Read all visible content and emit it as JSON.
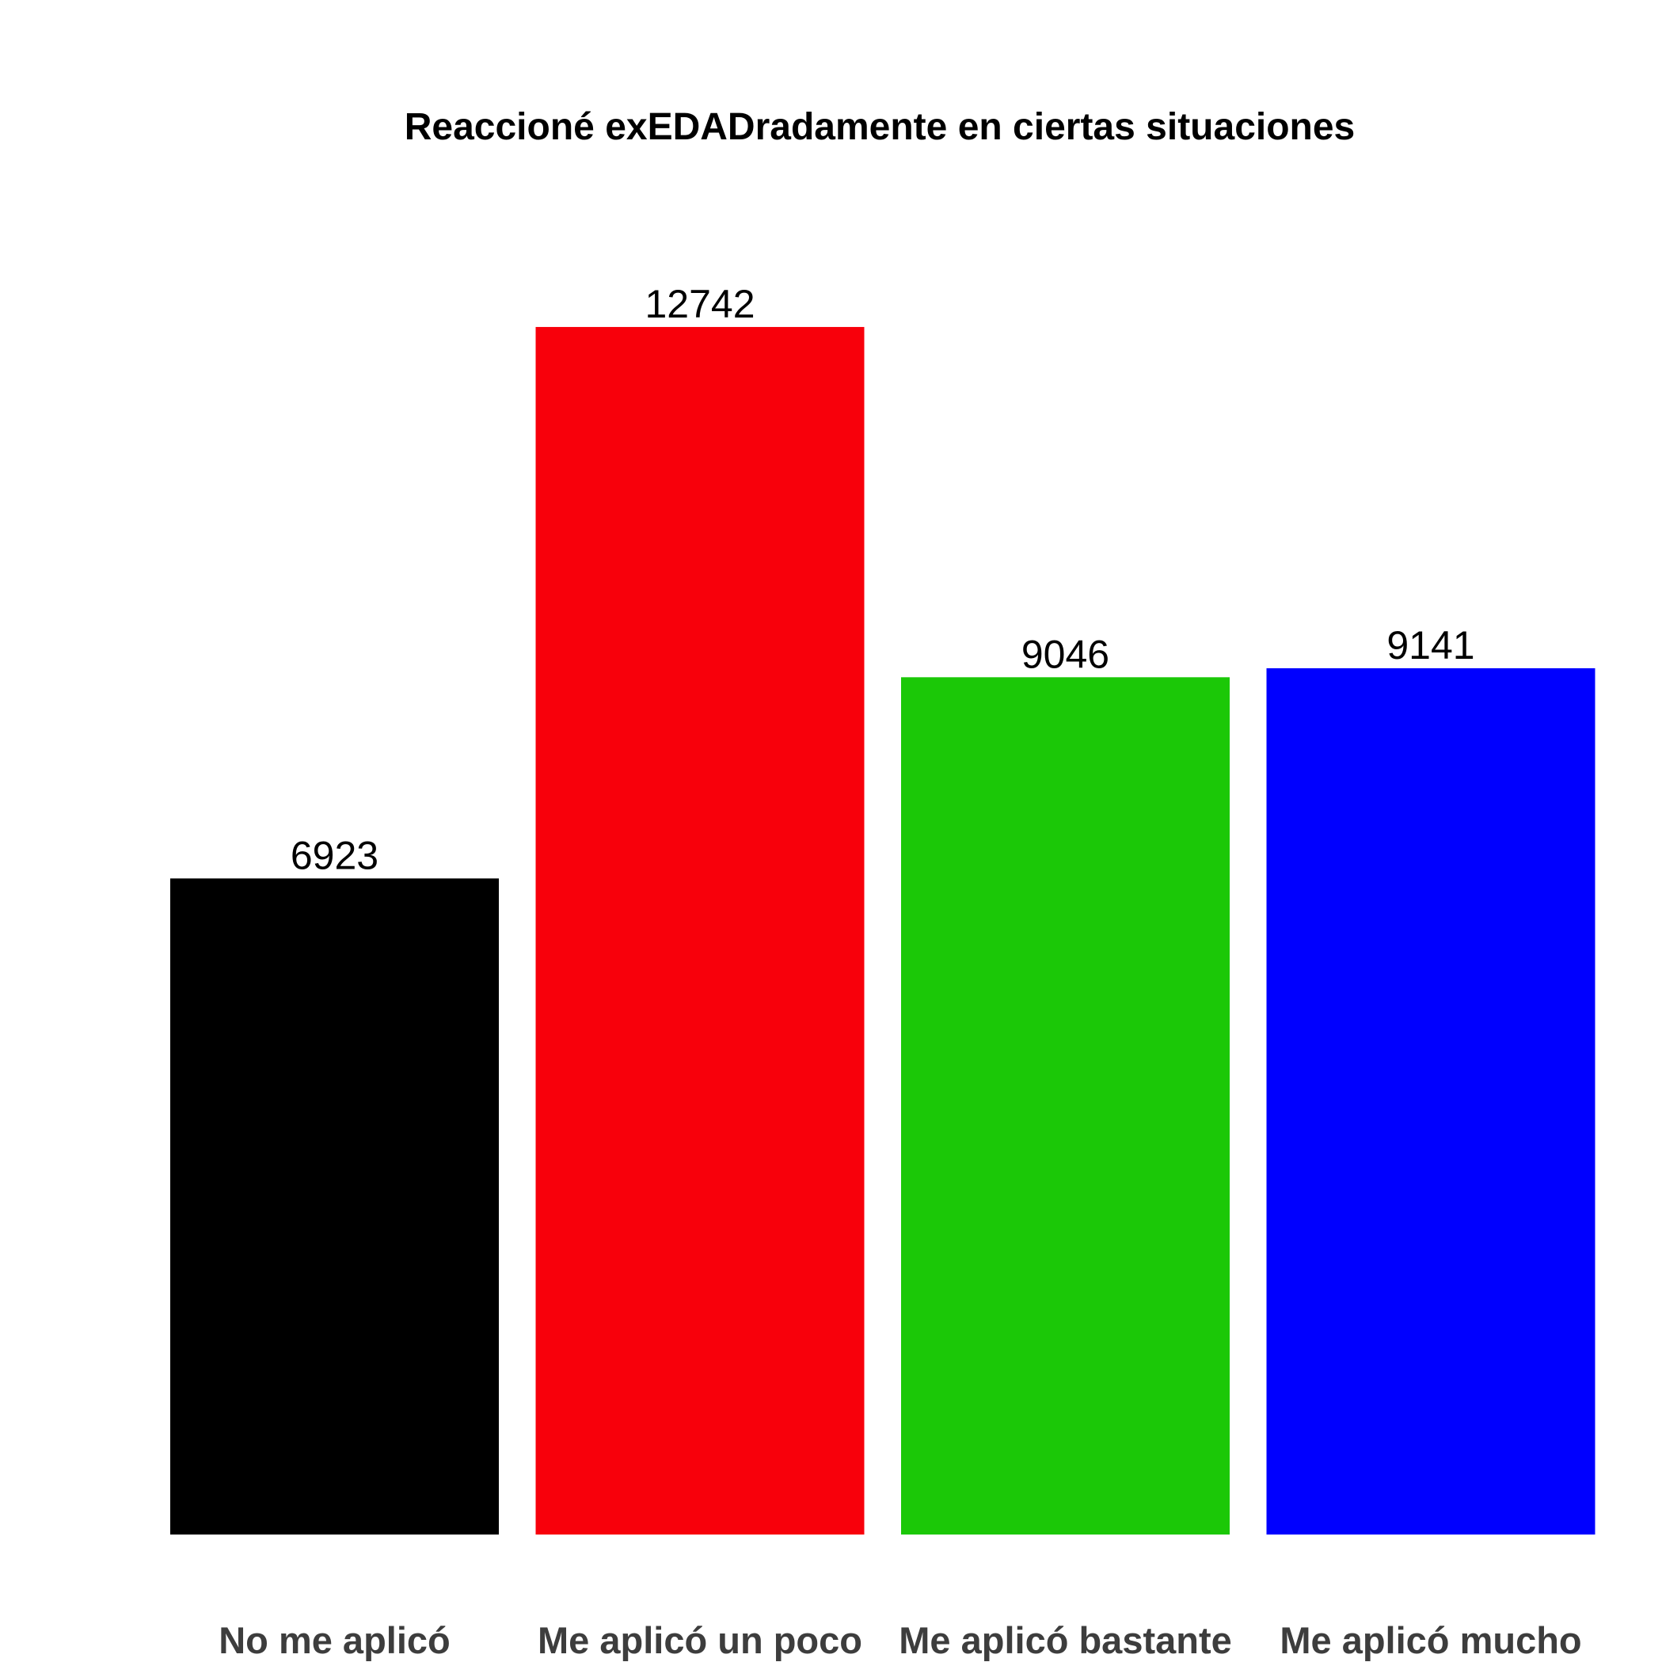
{
  "chart_data": {
    "type": "bar",
    "title": "Reaccioné exEDADradamente en ciertas situaciones",
    "xlabel": "",
    "ylabel": "",
    "categories": [
      "No me aplicó",
      "Me aplicó un poco",
      "Me aplicó bastante",
      "Me aplicó mucho"
    ],
    "values": [
      6923,
      12742,
      9046,
      9141
    ],
    "colors": [
      "#000000",
      "#f8000b",
      "#1bc807",
      "#0000ff"
    ],
    "data_labels": [
      "6923",
      "12742",
      "9046",
      "9141"
    ],
    "ylim": [
      0,
      13994
    ],
    "grid": false,
    "legend": "none"
  }
}
